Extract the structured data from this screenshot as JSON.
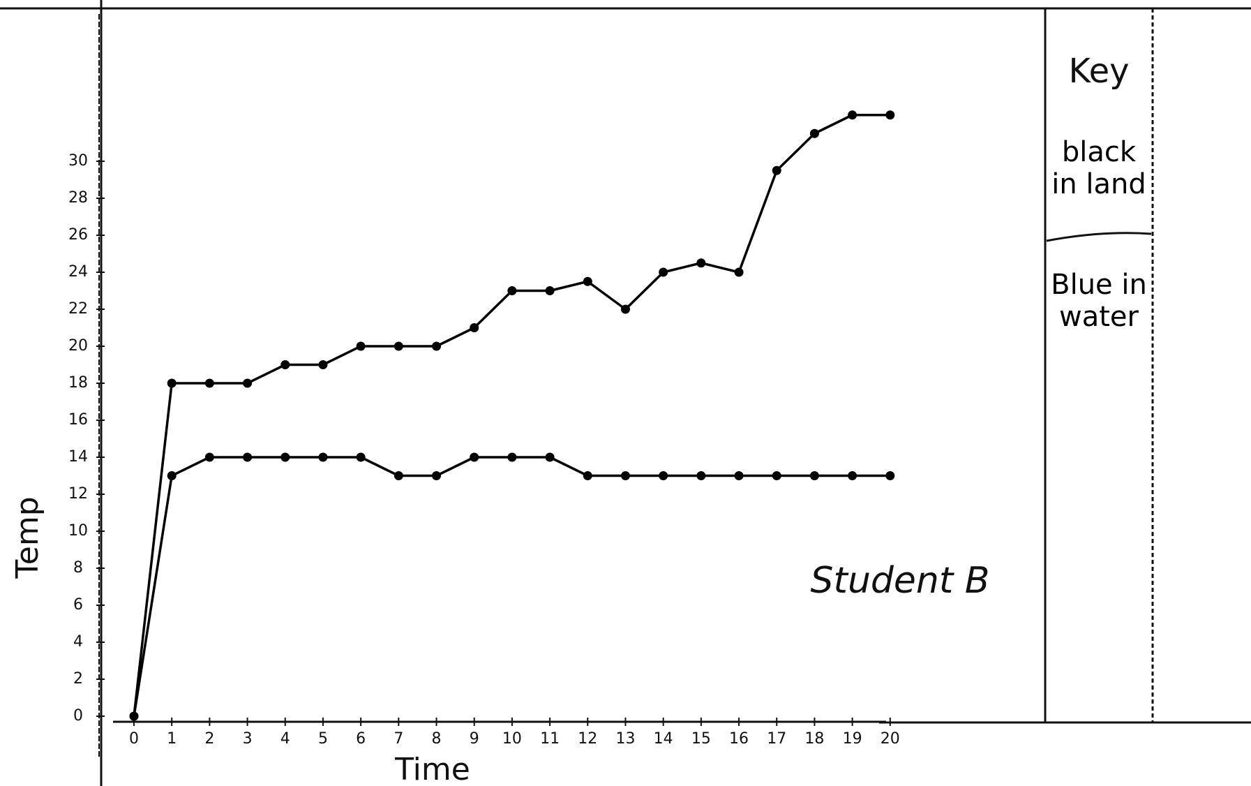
{
  "chart_data": {
    "type": "line",
    "annotation": "Student B",
    "x_label": "Time",
    "y_label": "Temp",
    "legend_title": "Key",
    "x": [
      0,
      1,
      2,
      3,
      4,
      5,
      6,
      7,
      8,
      9,
      10,
      11,
      12,
      13,
      14,
      15,
      16,
      17,
      18,
      19,
      20
    ],
    "series": [
      {
        "name": "black in land",
        "color": "#000000",
        "values": [
          0,
          18,
          18,
          18,
          19,
          19,
          20,
          20,
          20,
          21,
          23,
          23,
          23.5,
          22,
          24,
          24.5,
          24,
          29.5,
          31.5,
          32.5,
          32.5
        ]
      },
      {
        "name": "Blue in water",
        "color": "#000000",
        "values": [
          0,
          13,
          14,
          14,
          14,
          14,
          14,
          13,
          13,
          14,
          14,
          14,
          13,
          13,
          13,
          13,
          13,
          13,
          13,
          13,
          13
        ]
      }
    ],
    "xlim": [
      0,
      21
    ],
    "xticks": [
      0,
      1,
      2,
      3,
      4,
      5,
      6,
      7,
      8,
      9,
      10,
      11,
      12,
      13,
      14,
      15,
      16,
      17,
      18,
      19,
      20
    ],
    "ylim": [
      0,
      37
    ],
    "yticks": [
      0,
      2,
      4,
      6,
      8,
      10,
      12,
      14,
      16,
      18,
      20,
      22,
      24,
      26,
      28,
      30
    ],
    "grid": false,
    "legend": "right"
  }
}
